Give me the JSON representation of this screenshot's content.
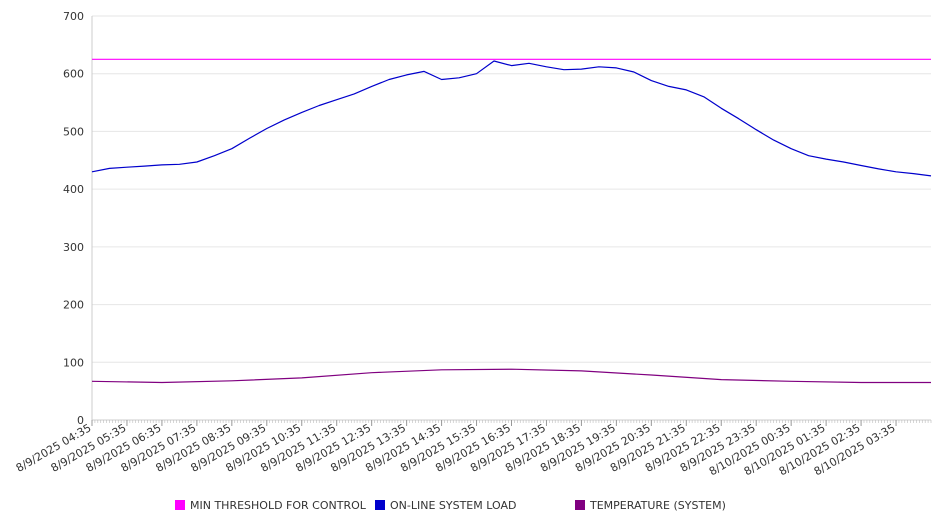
{
  "chart_data": {
    "type": "line",
    "ylim": [
      0,
      700
    ],
    "yticks": [
      0,
      100,
      200,
      300,
      400,
      500,
      600,
      700
    ],
    "x_start": "8/9/2025 04:35",
    "x_end": "8/10/2025 04:35",
    "x_tick_labels": [
      "8/9/2025 04:35",
      "8/9/2025 05:35",
      "8/9/2025 06:35",
      "8/9/2025 07:35",
      "8/9/2025 08:35",
      "8/9/2025 09:35",
      "8/9/2025 10:35",
      "8/9/2025 11:35",
      "8/9/2025 12:35",
      "8/9/2025 13:35",
      "8/9/2025 14:35",
      "8/9/2025 15:35",
      "8/9/2025 16:35",
      "8/9/2025 17:35",
      "8/9/2025 18:35",
      "8/9/2025 19:35",
      "8/9/2025 20:35",
      "8/9/2025 21:35",
      "8/9/2025 22:35",
      "8/9/2025 23:35",
      "8/10/2025 00:35",
      "8/10/2025 01:35",
      "8/10/2025 02:35",
      "8/10/2025 03:35"
    ],
    "grid": true,
    "legend_position": "bottom",
    "series": [
      {
        "name": "MIN THRESHOLD FOR CONTROL",
        "color": "#ff00ff",
        "x": [
          "8/9/2025 04:35",
          "8/10/2025 04:35"
        ],
        "values": [
          625,
          625
        ]
      },
      {
        "name": "ON-LINE SYSTEM LOAD",
        "color": "#0000cc",
        "x": [
          "8/9/2025 04:35",
          "8/9/2025 05:05",
          "8/9/2025 05:35",
          "8/9/2025 06:05",
          "8/9/2025 06:35",
          "8/9/2025 07:05",
          "8/9/2025 07:35",
          "8/9/2025 08:05",
          "8/9/2025 08:35",
          "8/9/2025 09:05",
          "8/9/2025 09:35",
          "8/9/2025 10:05",
          "8/9/2025 10:35",
          "8/9/2025 11:05",
          "8/9/2025 11:35",
          "8/9/2025 12:05",
          "8/9/2025 12:35",
          "8/9/2025 13:05",
          "8/9/2025 13:35",
          "8/9/2025 14:05",
          "8/9/2025 14:35",
          "8/9/2025 15:05",
          "8/9/2025 15:35",
          "8/9/2025 16:05",
          "8/9/2025 16:35",
          "8/9/2025 17:05",
          "8/9/2025 17:35",
          "8/9/2025 18:05",
          "8/9/2025 18:35",
          "8/9/2025 19:05",
          "8/9/2025 19:35",
          "8/9/2025 20:05",
          "8/9/2025 20:35",
          "8/9/2025 21:05",
          "8/9/2025 21:35",
          "8/9/2025 22:05",
          "8/9/2025 22:35",
          "8/9/2025 23:05",
          "8/9/2025 23:35",
          "8/10/2025 00:05",
          "8/10/2025 00:35",
          "8/10/2025 01:05",
          "8/10/2025 01:35",
          "8/10/2025 02:05",
          "8/10/2025 02:35",
          "8/10/2025 03:05",
          "8/10/2025 03:35",
          "8/10/2025 04:05",
          "8/10/2025 04:35"
        ],
        "values": [
          430,
          436,
          438,
          440,
          442,
          443,
          447,
          458,
          470,
          488,
          505,
          520,
          533,
          545,
          555,
          565,
          578,
          590,
          598,
          604,
          590,
          593,
          600,
          622,
          614,
          618,
          612,
          607,
          608,
          612,
          610,
          603,
          588,
          578,
          572,
          560,
          540,
          522,
          503,
          485,
          470,
          458,
          452,
          447,
          441,
          435,
          430,
          427,
          423
        ]
      },
      {
        "name": "TEMPERATURE (SYSTEM)",
        "color": "#800080",
        "x": [
          "8/9/2025 04:35",
          "8/9/2025 06:35",
          "8/9/2025 08:35",
          "8/9/2025 10:35",
          "8/9/2025 12:35",
          "8/9/2025 14:35",
          "8/9/2025 16:35",
          "8/9/2025 18:35",
          "8/9/2025 20:35",
          "8/9/2025 22:35",
          "8/10/2025 00:35",
          "8/10/2025 02:35",
          "8/10/2025 04:35"
        ],
        "values": [
          67,
          65,
          68,
          73,
          82,
          87,
          88,
          85,
          78,
          70,
          67,
          65,
          65
        ]
      }
    ]
  }
}
